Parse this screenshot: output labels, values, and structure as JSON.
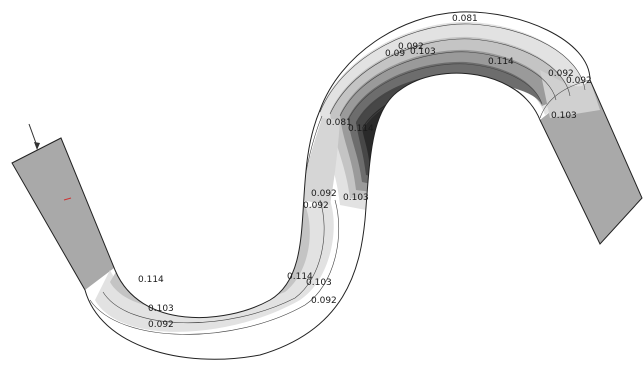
{
  "colors": {
    "background": "#ffffff",
    "outline": "#222222",
    "contour_line": "#444444",
    "band_light": "#ffffff",
    "band_mid": "#bdbdbd",
    "band_dark": "#5a5a5a",
    "band_darkest": "#262626",
    "straight_section_fill": "#a9a9a9",
    "inlet_arrow": "#333333",
    "small_mark": "#cc3333"
  },
  "contour_labels": [
    {
      "text": "0.081"
    },
    {
      "text": "0.092"
    },
    {
      "text": "0.09"
    },
    {
      "text": "0.103"
    },
    {
      "text": "0.114"
    },
    {
      "text": "0.092"
    },
    {
      "text": "0.092"
    },
    {
      "text": "0.103"
    },
    {
      "text": "0.081"
    },
    {
      "text": "0.114"
    },
    {
      "text": "0.092"
    },
    {
      "text": "0.092"
    },
    {
      "text": "0.103"
    },
    {
      "text": "0.114"
    },
    {
      "text": "0.103"
    },
    {
      "text": "0.114"
    },
    {
      "text": "0.103"
    },
    {
      "text": "0.092"
    },
    {
      "text": "0.092"
    }
  ]
}
